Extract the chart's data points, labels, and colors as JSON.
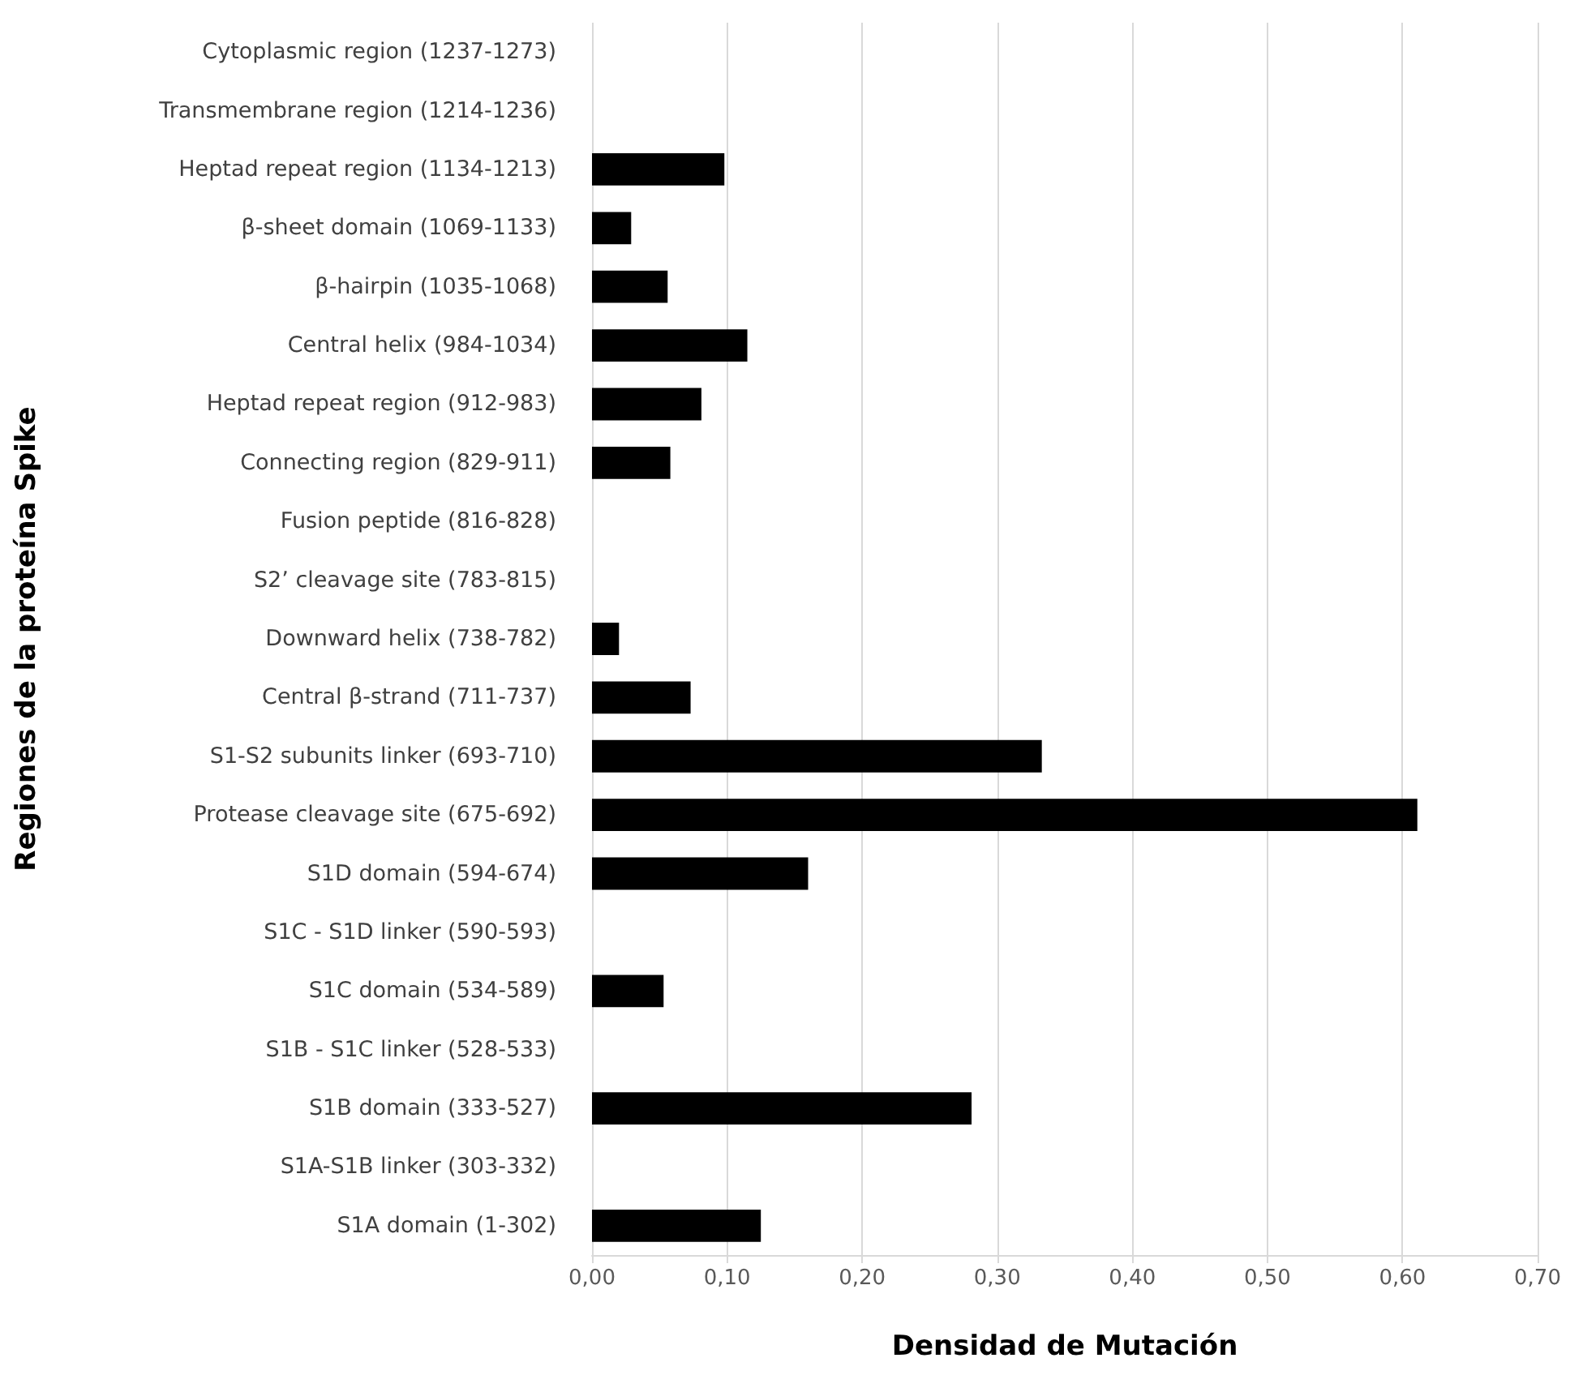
{
  "chart_data": {
    "type": "bar",
    "orientation": "horizontal",
    "xlabel": "Densidad de Mutación",
    "ylabel": "Regiones de la proteína Spike",
    "categories": [
      "Cytoplasmic region (1237-1273)",
      "Transmembrane region (1214-1236)",
      "Heptad repeat region (1134-1213)",
      "β-sheet domain (1069-1133)",
      "β-hairpin (1035-1068)",
      "Central helix (984-1034)",
      "Heptad repeat region (912-983)",
      "Connecting region (829-911)",
      "Fusion peptide (816-828)",
      "S2’ cleavage site (783-815)",
      "Downward helix (738-782)",
      "Central β-strand (711-737)",
      "S1-S2 subunits linker (693-710)",
      "Protease cleavage site (675-692)",
      "S1D domain (594-674)",
      "S1C - S1D linker (590-593)",
      "S1C domain (534-589)",
      "S1B - S1C linker (528-533)",
      "S1B domain (333-527)",
      "S1A-S1B linker (303-332)",
      "S1A domain (1-302)"
    ],
    "values": [
      0,
      0,
      0.098,
      0.029,
      0.056,
      0.115,
      0.081,
      0.058,
      0,
      0,
      0.02,
      0.073,
      0.333,
      0.611,
      0.16,
      0,
      0.053,
      0,
      0.281,
      0,
      0.125
    ],
    "color": "#000000",
    "xlim": [
      0,
      0.7
    ],
    "xticks": [
      {
        "value": 0,
        "label": "0,00"
      },
      {
        "value": 0.1,
        "label": "0,10"
      },
      {
        "value": 0.2,
        "label": "0,20"
      },
      {
        "value": 0.3,
        "label": "0,30"
      },
      {
        "value": 0.4,
        "label": "0,40"
      },
      {
        "value": 0.5,
        "label": "0,50"
      },
      {
        "value": 0.6,
        "label": "0,60"
      },
      {
        "value": 0.7,
        "label": "0,70"
      }
    ],
    "grid": "x"
  }
}
